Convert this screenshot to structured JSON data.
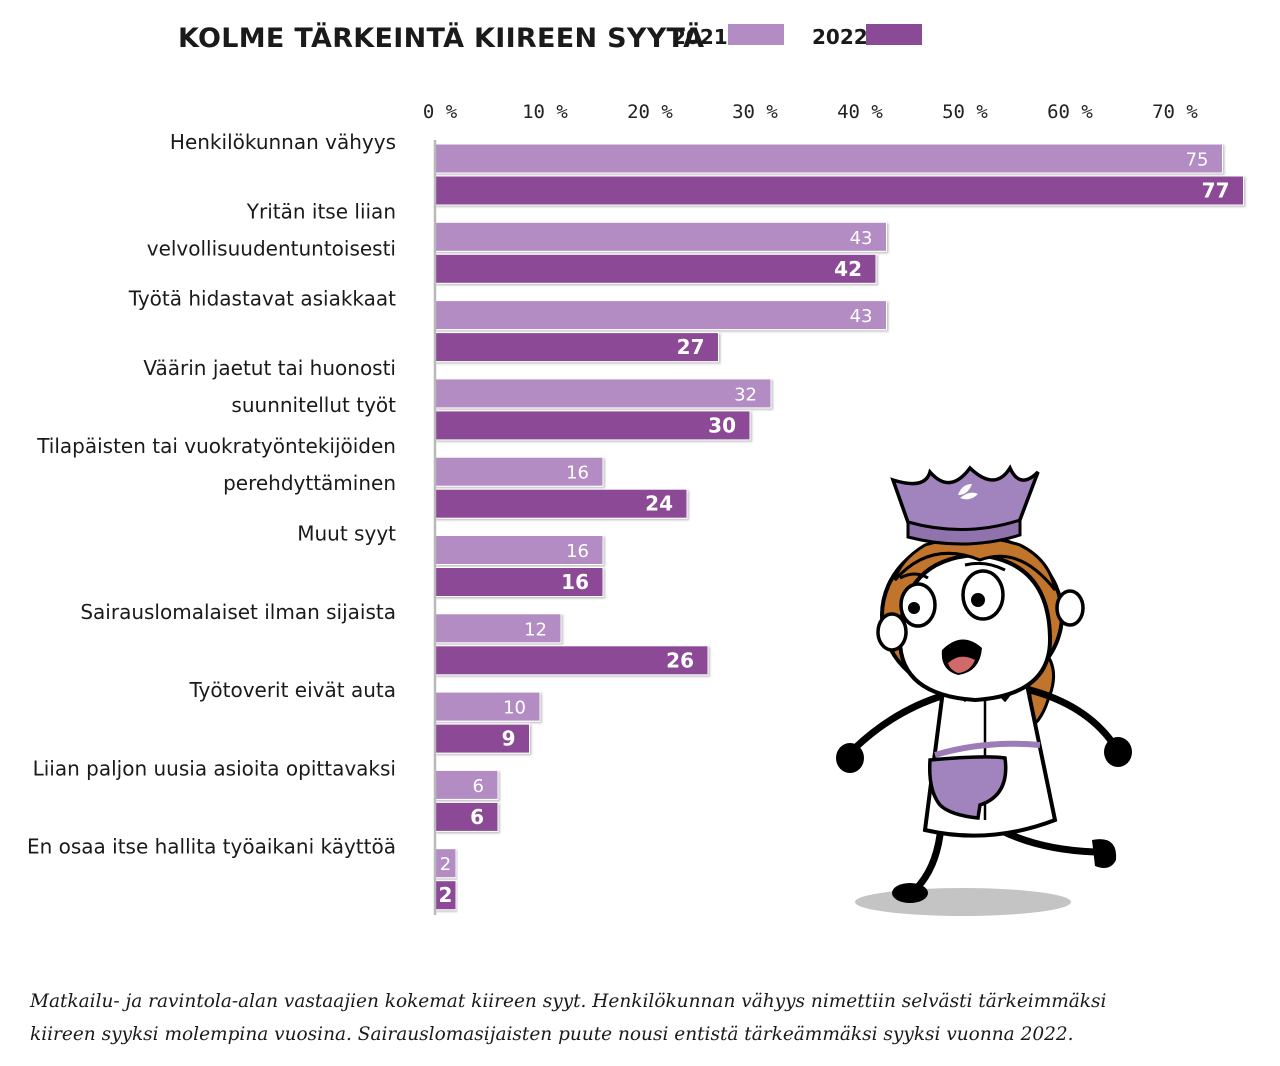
{
  "chart_data": {
    "type": "bar",
    "orientation": "horizontal",
    "title": "KOLME TÄRKEINTÄ KIIREEN SYYTÄ",
    "xlim": [
      0,
      77
    ],
    "x_ticks": [
      0,
      10,
      20,
      30,
      40,
      50,
      60,
      70
    ],
    "x_tick_labels": [
      "0 %",
      "10 %",
      "20 %",
      "30 %",
      "40 %",
      "50 %",
      "60 %",
      "70 %"
    ],
    "legend_position": "top",
    "grid": false,
    "categories": [
      [
        "Henkilökunnan vähyys"
      ],
      [
        "Yritän itse liian",
        "velvollisuudentuntoisesti"
      ],
      [
        "Työtä hidastavat asiakkaat"
      ],
      [
        "Väärin jaetut tai huonosti",
        "suunnitellut työt"
      ],
      [
        "Tilapäisten tai vuokratyöntekijöiden",
        "perehdyttäminen"
      ],
      [
        "Muut syyt"
      ],
      [
        "Sairauslomalaiset ilman sijaista"
      ],
      [
        "Työtoverit eivät auta"
      ],
      [
        "Liian paljon uusia asioita opittavaksi"
      ],
      [
        "En osaa itse hallita työaikani käyttöä"
      ]
    ],
    "series": [
      {
        "name": "2021",
        "color": "#b38cc4",
        "values": [
          75,
          43,
          43,
          32,
          16,
          16,
          12,
          10,
          6,
          2
        ]
      },
      {
        "name": "2022",
        "color": "#8b4a96",
        "values": [
          77,
          42,
          27,
          30,
          24,
          16,
          26,
          9,
          6,
          2
        ]
      }
    ]
  },
  "caption": "Matkailu- ja ravintola-alan vastaajien kokemat kiireen syyt. Henkilökunnan vähyys nimettiin selvästi tärkeimmäksi kiireen syyksi molempina vuosina. Sairauslomasijaisten puute nousi entistä tärkeämmäksi syyksi vuonna 2022."
}
